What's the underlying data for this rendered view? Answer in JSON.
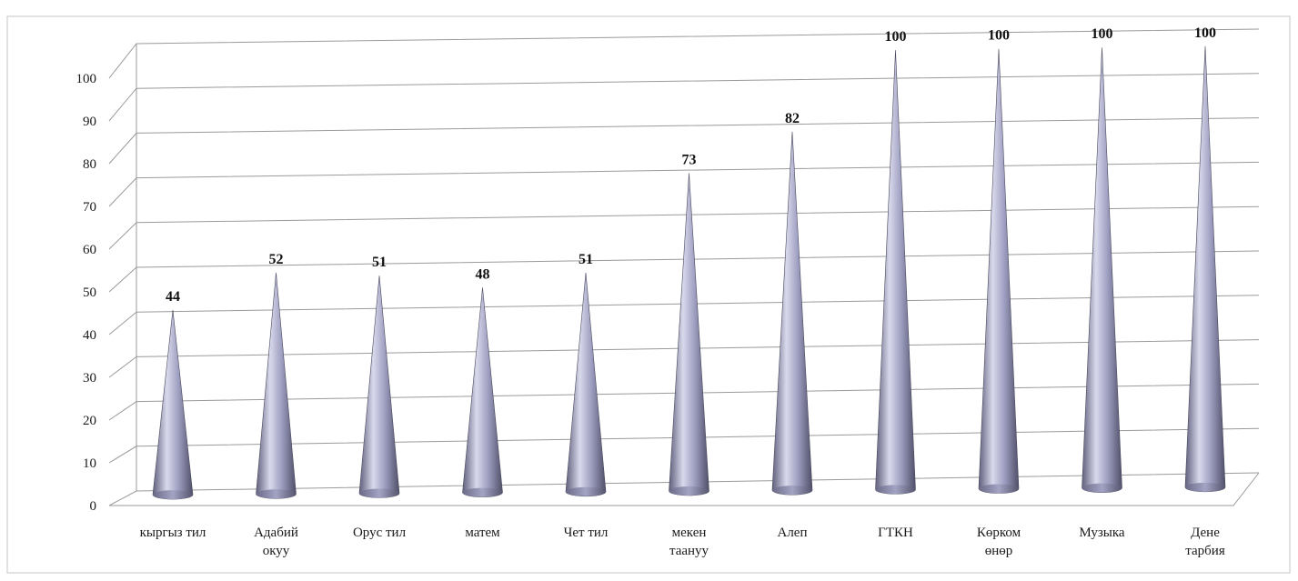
{
  "chart_data": {
    "type": "bar",
    "style": "3d-cone",
    "categories": [
      [
        "кыргыз тил"
      ],
      [
        "Адабий",
        "окуу"
      ],
      [
        "Орус тил"
      ],
      [
        "матем"
      ],
      [
        "Чет тил"
      ],
      [
        "мекен",
        "таануу"
      ],
      [
        "Алеп"
      ],
      [
        "ГТКН"
      ],
      [
        "Көрком",
        "өнөр"
      ],
      [
        "Музыка"
      ],
      [
        "Дене",
        "тарбия"
      ]
    ],
    "values": [
      44,
      52,
      51,
      48,
      51,
      73,
      82,
      100,
      100,
      100,
      100
    ],
    "data_labels": [
      "44",
      "52",
      "51",
      "48",
      "51",
      "73",
      "82",
      "100",
      "100",
      "100",
      "100"
    ],
    "yticks": [
      "0",
      "10",
      "20",
      "30",
      "40",
      "50",
      "60",
      "70",
      "80",
      "90",
      "100"
    ],
    "ylim": [
      0,
      100
    ],
    "grid": true,
    "legend": "none",
    "colors": {
      "cone_light": "#d9d9ec",
      "cone_mid": "#9c9cbf",
      "cone_dark": "#5f5f7c",
      "grid": "#9a9a9a"
    }
  }
}
